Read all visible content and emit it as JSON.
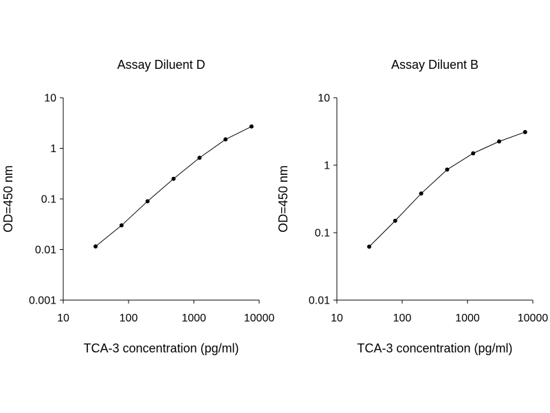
{
  "chart_data": [
    {
      "type": "line",
      "title": "Assay Diluent D",
      "xlabel": "TCA-3 concentration (pg/ml)",
      "ylabel": "OD=450 nm",
      "xscale": "log",
      "yscale": "log",
      "xlim": [
        10,
        10000
      ],
      "ylim": [
        0.001,
        10
      ],
      "xticks": [
        "10",
        "100",
        "1000",
        "10000"
      ],
      "yticks": [
        "0.001",
        "0.01",
        "0.1",
        "1",
        "10"
      ],
      "grid": false,
      "series": [
        {
          "x": [
            31.25,
            78.125,
            195.3,
            488.3,
            1220.7,
            3051.8,
            7629.4
          ],
          "y": [
            0.0115,
            0.03,
            0.09,
            0.25,
            0.65,
            1.5,
            2.7
          ]
        }
      ]
    },
    {
      "type": "line",
      "title": "Assay Diluent B",
      "xlabel": "TCA-3 concentration (pg/ml)",
      "ylabel": "OD=450 nm",
      "xscale": "log",
      "yscale": "log",
      "xlim": [
        10,
        10000
      ],
      "ylim": [
        0.01,
        10
      ],
      "xticks": [
        "10",
        "100",
        "1000",
        "10000"
      ],
      "yticks": [
        "0.01",
        "0.1",
        "1",
        "10"
      ],
      "grid": false,
      "series": [
        {
          "x": [
            31.25,
            78.125,
            195.3,
            488.3,
            1220.7,
            3051.8,
            7629.4
          ],
          "y": [
            0.062,
            0.15,
            0.38,
            0.86,
            1.5,
            2.25,
            3.1
          ]
        }
      ]
    }
  ]
}
